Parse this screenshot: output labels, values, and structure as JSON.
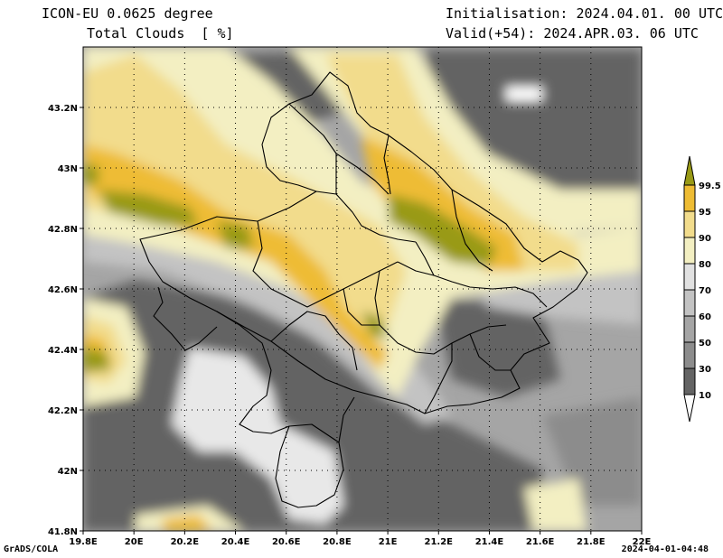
{
  "header": {
    "model": "ICON-EU 0.0625 degree",
    "field": "Total Clouds  [ %]",
    "init": "Initialisation: 2024.04.01. 00 UTC",
    "valid": "Valid(+54): 2024.APR.03. 06 UTC"
  },
  "footer": {
    "credit": "GrADS/COLA",
    "timestamp": "2024-04-01-04:48"
  },
  "axes": {
    "lat_labels": [
      "43.2N",
      "43N",
      "42.8N",
      "42.6N",
      "42.4N",
      "42.2N",
      "42N",
      "41.8N"
    ],
    "lon_labels": [
      "19.8E",
      "20E",
      "20.2E",
      "20.4E",
      "20.6E",
      "20.8E",
      "21E",
      "21.2E",
      "21.4E",
      "21.6E",
      "21.8E",
      "22E"
    ],
    "lat_range": [
      41.8,
      43.4
    ],
    "lon_range": [
      19.8,
      22.0
    ]
  },
  "colorbar": {
    "levels": [
      "10",
      "30",
      "50",
      "60",
      "70",
      "80",
      "90",
      "95",
      "99.5"
    ],
    "colors": [
      "#646464",
      "#8c8c8c",
      "#a5a5a5",
      "#c3c3c3",
      "#e1e1e1",
      "#f3efc2",
      "#f2dc8c",
      "#eebc34",
      "#999a16"
    ],
    "below_color": "#ffffff",
    "above_color": "#999a16"
  }
}
